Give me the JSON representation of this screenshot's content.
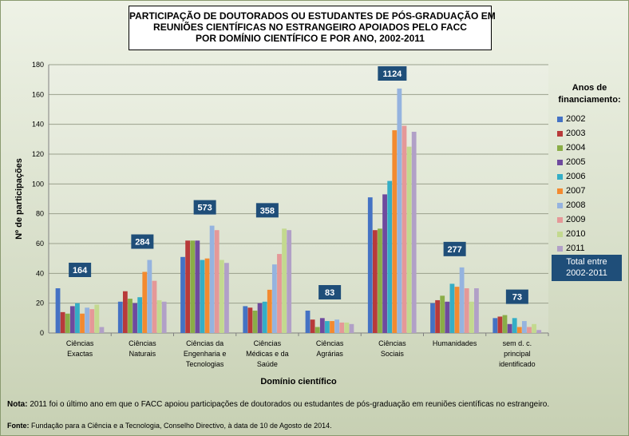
{
  "title_lines": [
    "PARTICIPAÇÃO DE DOUTORADOS OU ESTUDANTES DE PÓS-GRADUAÇÃO EM",
    "REUNIÕES CIENTÍFICAS NO ESTRANGEIRO APOIADOS PELO FACC",
    "POR DOMÍNIO CIENTÍFICO E POR ANO, 2002-2011"
  ],
  "legend_title_lines": [
    "Anos de",
    "financiamento:"
  ],
  "total_label_lines": [
    "Total entre",
    "2002-2011"
  ],
  "note_label": "Nota:",
  "note_text": " 2011 foi o último ano em que o FACC apoiou participações de doutorados ou estudantes de pós-graduação em reuniões científicas no estrangeiro.",
  "source_label": "Fonte:",
  "source_text": " Fundação para a Ciência e a Tecnologia, Conselho Directivo, à data de 10 de Agosto de 2014.",
  "colors": [
    "#4472c4",
    "#b83a3a",
    "#8aad47",
    "#6e4a9e",
    "#34aec6",
    "#f38a30",
    "#95b3df",
    "#e59898",
    "#c3d98f",
    "#b1a0c7"
  ],
  "chart_data": {
    "type": "bar",
    "xlabel": "Domínio científico",
    "ylabel": "Nº de participações",
    "ylim": [
      0,
      180
    ],
    "yticks": [
      0,
      20,
      40,
      60,
      80,
      100,
      120,
      140,
      160,
      180
    ],
    "categories": [
      [
        "Ciências",
        "Exactas"
      ],
      [
        "Ciências",
        "Naturais"
      ],
      [
        "Ciências da",
        "Engenharia e",
        "Tecnologias"
      ],
      [
        "Ciências",
        "Médicas e da",
        "Saúde"
      ],
      [
        "Ciências",
        "Agrárias"
      ],
      [
        "Ciências",
        "Sociais"
      ],
      [
        "Humanidades"
      ],
      [
        "sem d. c.",
        "principal",
        "identificado"
      ]
    ],
    "totals": [
      "164",
      "284",
      "573",
      "358",
      "83",
      "1124",
      "277",
      "73"
    ],
    "series": [
      {
        "name": "2002",
        "values": [
          30,
          21,
          51,
          18,
          15,
          91,
          20,
          10
        ]
      },
      {
        "name": "2003",
        "values": [
          14,
          28,
          62,
          17,
          9,
          69,
          22,
          11
        ]
      },
      {
        "name": "2004",
        "values": [
          13,
          23,
          62,
          15,
          4,
          70,
          25,
          12
        ]
      },
      {
        "name": "2005",
        "values": [
          18,
          20,
          62,
          20,
          10,
          93,
          21,
          6
        ]
      },
      {
        "name": "2006",
        "values": [
          20,
          24,
          49,
          21,
          8,
          102,
          33,
          10
        ]
      },
      {
        "name": "2007",
        "values": [
          13,
          41,
          50,
          29,
          8,
          136,
          31,
          4
        ]
      },
      {
        "name": "2008",
        "values": [
          17,
          49,
          72,
          46,
          9,
          164,
          44,
          8
        ]
      },
      {
        "name": "2009",
        "values": [
          16,
          35,
          69,
          53,
          7,
          139,
          30,
          4
        ]
      },
      {
        "name": "2010",
        "values": [
          19,
          22,
          49,
          70,
          7,
          125,
          21,
          6
        ]
      },
      {
        "name": "2011",
        "values": [
          4,
          21,
          47,
          69,
          6,
          135,
          30,
          2
        ]
      }
    ]
  }
}
